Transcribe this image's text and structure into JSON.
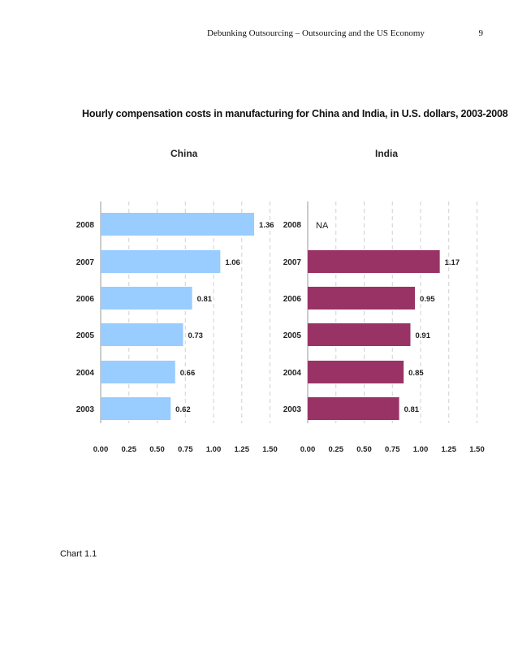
{
  "header": {
    "running_title": "Debunking Outsourcing – Outsourcing and the US Economy",
    "page_number": "9"
  },
  "caption": "Chart 1.1",
  "chart_data": {
    "type": "bar",
    "orientation": "horizontal",
    "title": "Hourly compensation costs in manufacturing for China and India, in U.S. dollars, 2003-2008",
    "xlim": [
      0,
      1.5
    ],
    "xticks": [
      "0.00",
      "0.25",
      "0.50",
      "0.75",
      "1.00",
      "1.25",
      "1.50"
    ],
    "grid": "vertical-dashed",
    "panels": [
      {
        "name": "China",
        "color": "#99ccff",
        "categories": [
          "2008",
          "2007",
          "2006",
          "2005",
          "2004",
          "2003"
        ],
        "values": [
          1.36,
          1.06,
          0.81,
          0.73,
          0.66,
          0.62
        ],
        "labels": [
          "1.36",
          "1.06",
          "0.81",
          "0.73",
          "0.66",
          "0.62"
        ]
      },
      {
        "name": "India",
        "color": "#993366",
        "categories": [
          "2008",
          "2007",
          "2006",
          "2005",
          "2004",
          "2003"
        ],
        "values": [
          null,
          1.17,
          0.95,
          0.91,
          0.85,
          0.81
        ],
        "labels": [
          "NA",
          "1.17",
          "0.95",
          "0.91",
          "0.85",
          "0.81"
        ]
      }
    ]
  }
}
